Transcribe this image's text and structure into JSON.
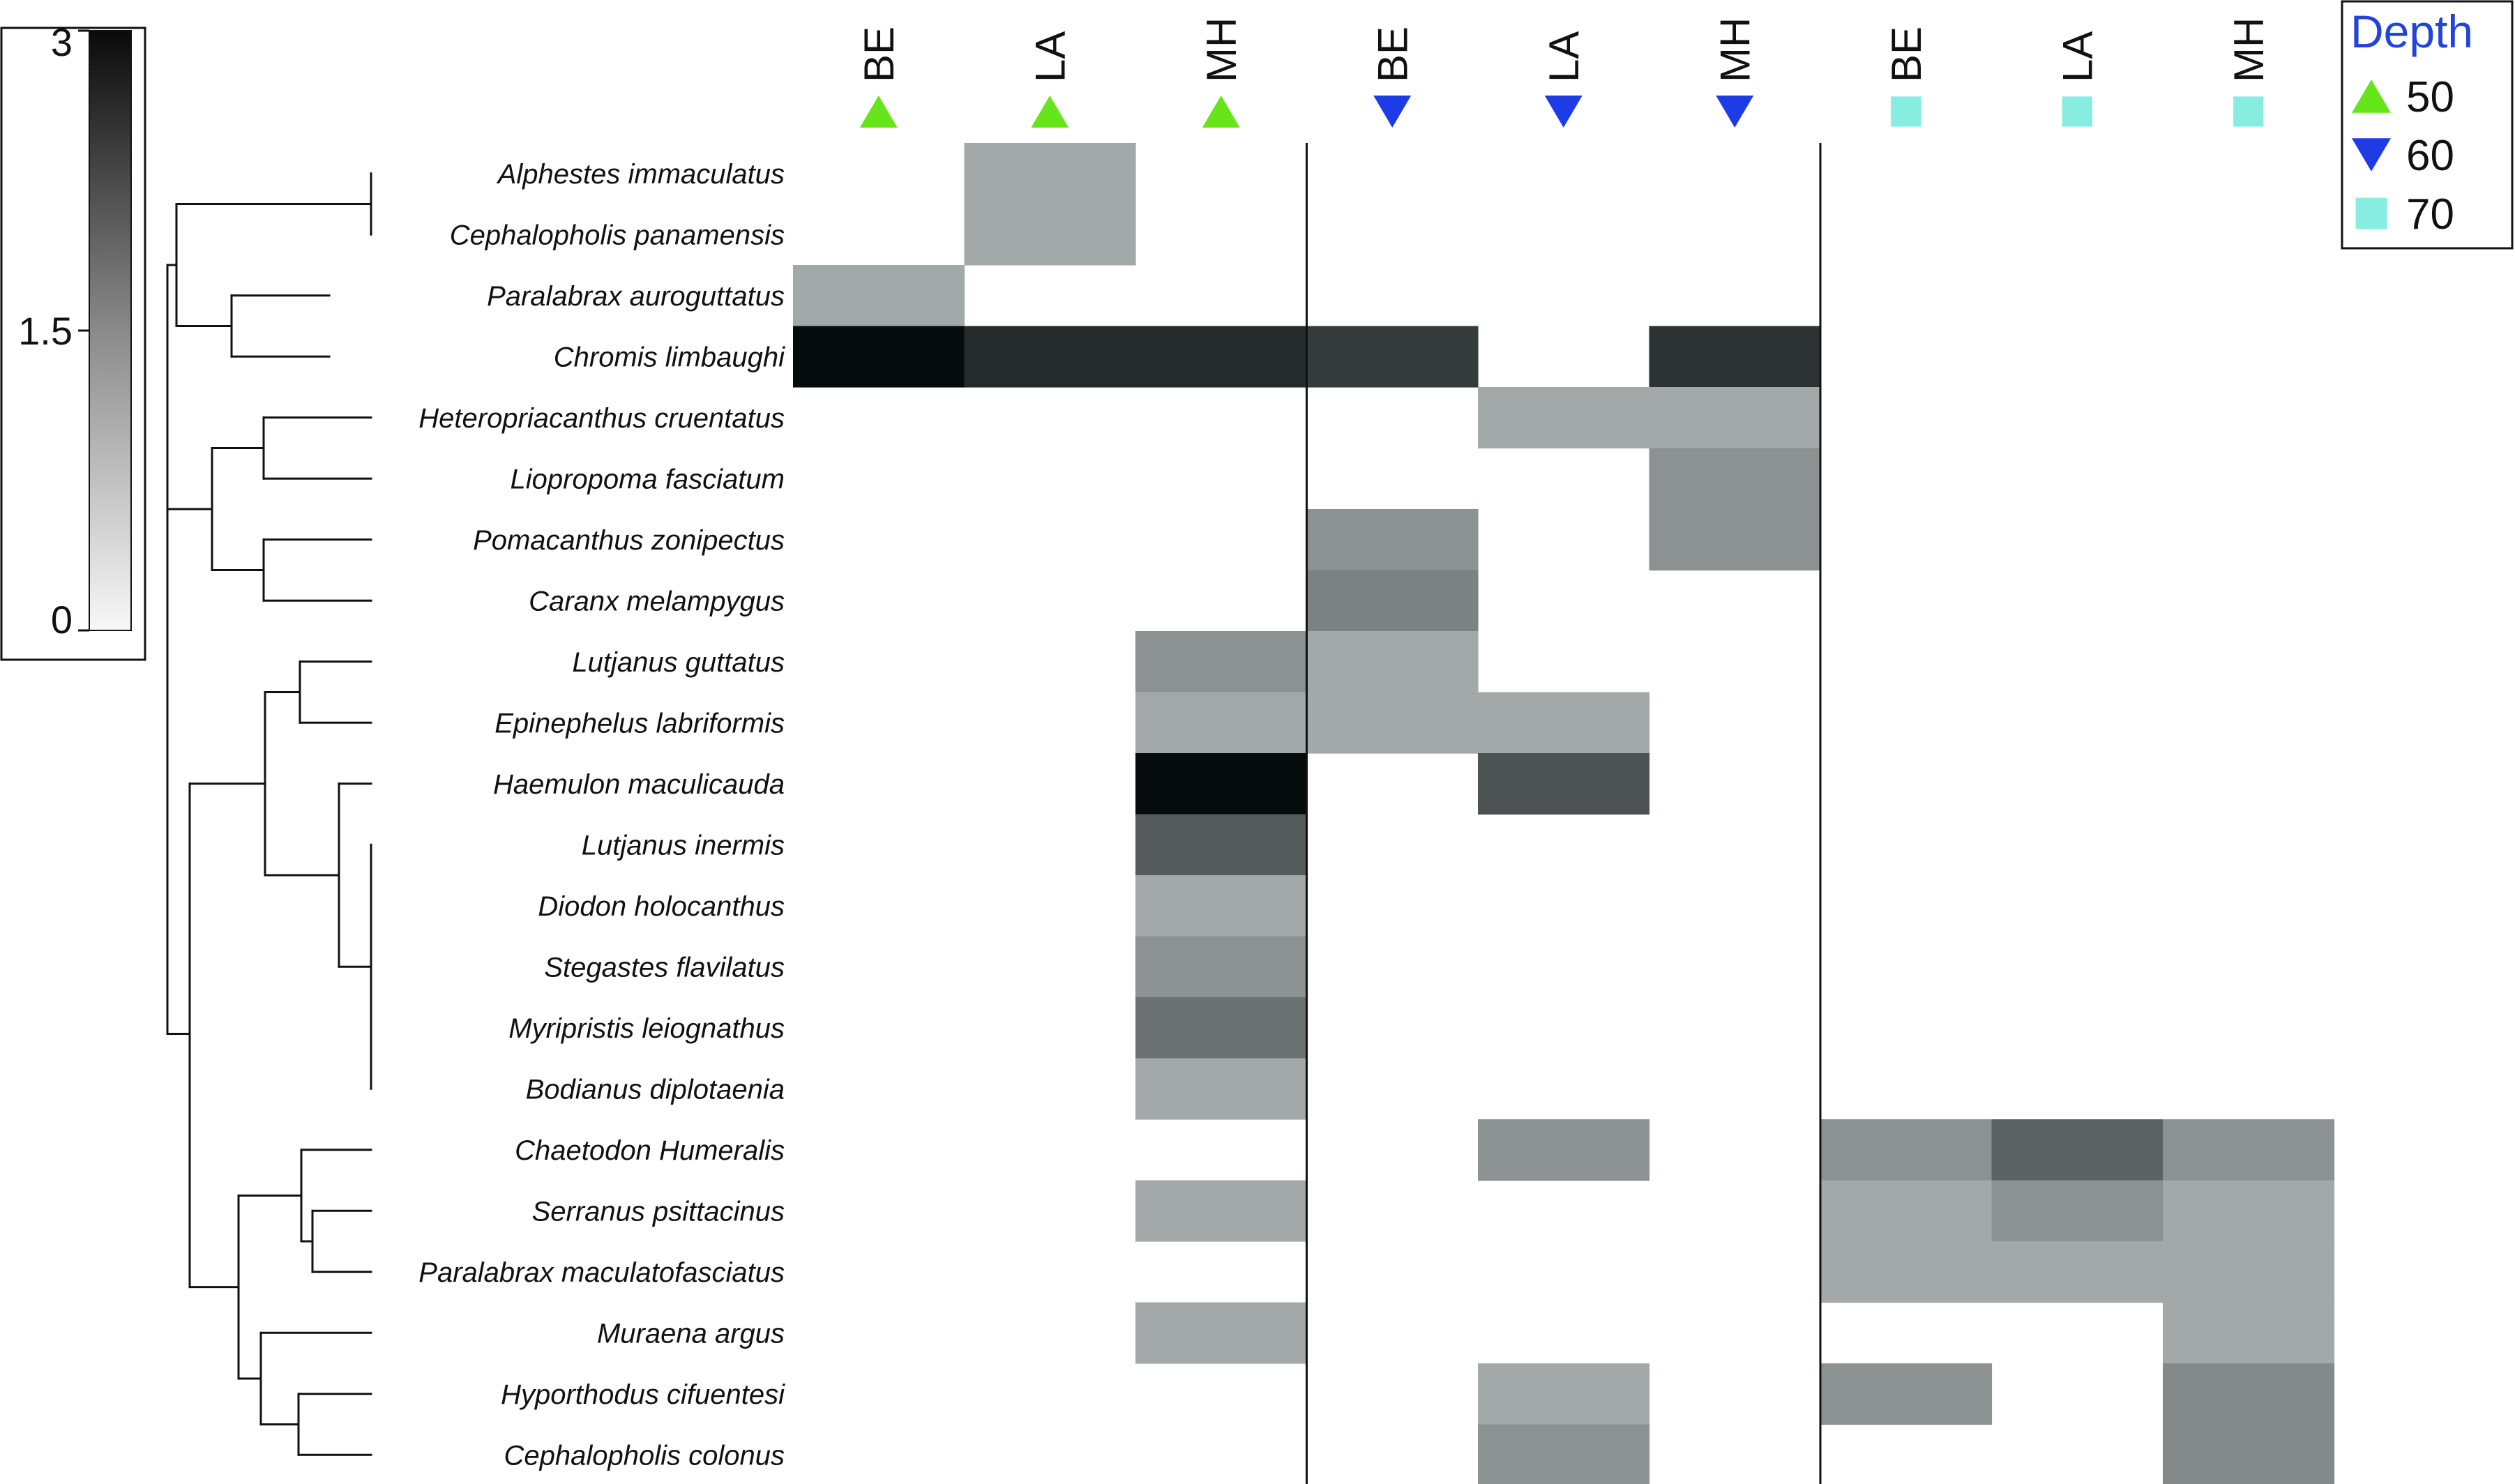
{
  "chart_data": {
    "type": "heatmap",
    "colorbar": {
      "min": 0,
      "max": 3,
      "ticks": [
        {
          "label": "3",
          "value": 3
        },
        {
          "label": "1.5",
          "value": 1.5
        },
        {
          "label": "0",
          "value": 0
        }
      ]
    },
    "legend": {
      "title": "Depth",
      "placement": "top-right",
      "items": [
        {
          "label": "50",
          "marker": "triangle-up",
          "color": "#66e61a"
        },
        {
          "label": "60",
          "marker": "triangle-down",
          "color": "#1e3ce6"
        },
        {
          "label": "70",
          "marker": "square",
          "color": "#86ede0"
        }
      ]
    },
    "columns": [
      {
        "label": "BE",
        "depth": "50"
      },
      {
        "label": "LA",
        "depth": "50"
      },
      {
        "label": "MH",
        "depth": "50"
      },
      {
        "label": "BE",
        "depth": "60"
      },
      {
        "label": "LA",
        "depth": "60"
      },
      {
        "label": "MH",
        "depth": "60"
      },
      {
        "label": "BE",
        "depth": "70"
      },
      {
        "label": "LA",
        "depth": "70"
      },
      {
        "label": "MH",
        "depth": "70"
      }
    ],
    "rows": [
      "Alphestes immaculatus",
      "Cephalopholis panamensis",
      "Paralabrax auroguttatus",
      "Chromis limbaughi",
      "Heteropriacanthus cruentatus",
      "Liopropoma fasciatum",
      "Pomacanthus zonipectus",
      "Caranx melampygus",
      "Lutjanus guttatus",
      "Epinephelus labriformis",
      "Haemulon maculicauda",
      "Lutjanus inermis",
      "Diodon holocanthus",
      "Stegastes flavilatus",
      "Myripristis leiognathus",
      "Bodianus diplotaenia",
      "Chaetodon Humeralis",
      "Serranus psittacinus",
      "Paralabrax maculatofasciatus",
      "Muraena argus",
      "Hyporthodus cifuentesi",
      "Cephalopholis colonus"
    ],
    "values": [
      [
        null,
        1.0,
        null,
        null,
        null,
        null,
        null,
        null,
        null
      ],
      [
        null,
        1.0,
        null,
        null,
        null,
        null,
        null,
        null,
        null
      ],
      [
        1.0,
        null,
        null,
        null,
        null,
        null,
        null,
        null,
        null
      ],
      [
        3.0,
        2.6,
        2.6,
        2.4,
        null,
        2.5,
        null,
        null,
        null
      ],
      [
        null,
        null,
        null,
        null,
        1.0,
        1.0,
        null,
        null,
        null
      ],
      [
        null,
        null,
        null,
        null,
        null,
        1.3,
        null,
        null,
        null
      ],
      [
        null,
        null,
        null,
        1.3,
        null,
        1.3,
        null,
        null,
        null
      ],
      [
        null,
        null,
        null,
        1.5,
        null,
        null,
        null,
        null,
        null
      ],
      [
        null,
        null,
        1.3,
        1.0,
        null,
        null,
        null,
        null,
        null
      ],
      [
        null,
        null,
        1.0,
        1.0,
        1.0,
        null,
        null,
        null,
        null
      ],
      [
        null,
        null,
        3.0,
        null,
        2.1,
        null,
        null,
        null,
        null
      ],
      [
        null,
        null,
        2.0,
        null,
        null,
        null,
        null,
        null,
        null
      ],
      [
        null,
        null,
        1.0,
        null,
        null,
        null,
        null,
        null,
        null
      ],
      [
        null,
        null,
        1.3,
        null,
        null,
        null,
        null,
        null,
        null
      ],
      [
        null,
        null,
        1.7,
        null,
        null,
        null,
        null,
        null,
        null
      ],
      [
        null,
        null,
        1.0,
        null,
        null,
        null,
        null,
        null,
        null
      ],
      [
        null,
        null,
        null,
        null,
        1.3,
        null,
        1.3,
        1.9,
        1.3
      ],
      [
        null,
        null,
        1.0,
        null,
        null,
        null,
        1.0,
        1.3,
        1.0
      ],
      [
        null,
        null,
        null,
        null,
        null,
        null,
        1.0,
        1.0,
        1.0
      ],
      [
        null,
        null,
        1.0,
        null,
        null,
        null,
        null,
        null,
        1.0
      ],
      [
        null,
        null,
        null,
        null,
        1.0,
        null,
        1.3,
        null,
        1.4
      ],
      [
        null,
        null,
        null,
        null,
        1.3,
        null,
        null,
        null,
        1.4
      ]
    ]
  }
}
